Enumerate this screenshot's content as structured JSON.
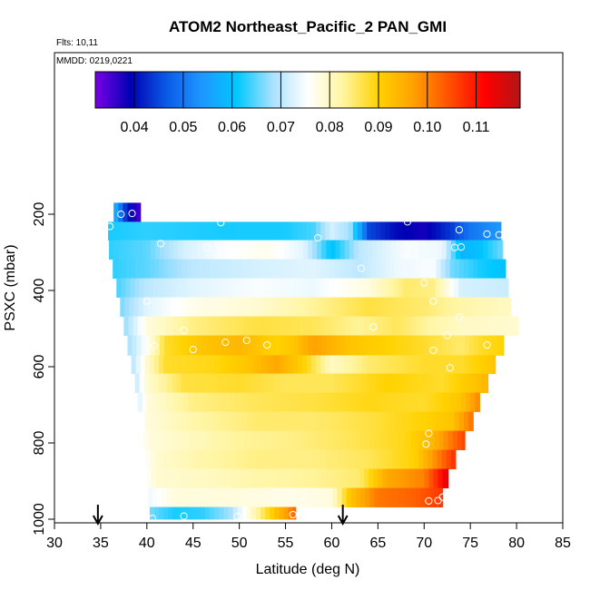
{
  "chart_data": {
    "type": "heatmap",
    "title": "ATOM2 Northeast_Pacific_2 PAN_GMI",
    "subtitle_flights": "Flts: 10,11",
    "subtitle_dates": "MMDD: 0219,0221",
    "xlabel": "Latitude (deg N)",
    "ylabel": "PSXC (mbar)",
    "xlim": [
      30,
      85
    ],
    "ylim": [
      1000,
      0
    ],
    "x_ticks": [
      "30",
      "35",
      "40",
      "45",
      "50",
      "55",
      "60",
      "65",
      "70",
      "75",
      "80",
      "85"
    ],
    "y_ticks": [
      "200",
      "400",
      "600",
      "800",
      "1000"
    ],
    "colorbar": {
      "range": [
        0.032,
        0.119
      ],
      "tick_labels": [
        "0.04",
        "0.05",
        "0.06",
        "0.07",
        "0.08",
        "0.09",
        "0.10",
        "0.11"
      ],
      "tick_values": [
        0.04,
        0.05,
        0.06,
        0.07,
        0.08,
        0.09,
        0.1,
        0.11
      ],
      "colors": [
        "#7a00e6",
        "#0000b4",
        "#0a5ae6",
        "#1e96ff",
        "#00c8ff",
        "#a8e1ff",
        "#ffffff",
        "#fff5a0",
        "#ffd200",
        "#ffa000",
        "#ff5000",
        "#ff0000",
        "#b41414"
      ]
    },
    "arrows_lat": [
      34.7,
      61.2
    ],
    "bands": [
      {
        "p_top": 170,
        "p_bot": 220,
        "lat0": 36.4,
        "lat1": 39.3,
        "nodes": [
          [
            36.4,
            0.06
          ],
          [
            37.5,
            0.045
          ],
          [
            38.5,
            0.038
          ],
          [
            39.3,
            0.035
          ]
        ]
      },
      {
        "p_top": 220,
        "p_bot": 268,
        "lat0": 35.8,
        "lat1": 78.3,
        "nodes": [
          [
            35.8,
            0.062
          ],
          [
            40,
            0.063
          ],
          [
            48,
            0.062
          ],
          [
            55,
            0.062
          ],
          [
            58,
            0.064
          ],
          [
            60,
            0.072
          ],
          [
            62,
            0.068
          ],
          [
            64,
            0.045
          ],
          [
            67,
            0.04
          ],
          [
            70,
            0.038
          ],
          [
            73,
            0.044
          ],
          [
            75,
            0.05
          ],
          [
            78.3,
            0.054
          ]
        ]
      },
      {
        "p_top": 268,
        "p_bot": 318,
        "lat0": 35.9,
        "lat1": 78.5,
        "nodes": [
          [
            35.9,
            0.063
          ],
          [
            40,
            0.065
          ],
          [
            44,
            0.072
          ],
          [
            48,
            0.075
          ],
          [
            53,
            0.077
          ],
          [
            57,
            0.073
          ],
          [
            60,
            0.06
          ],
          [
            63,
            0.07
          ],
          [
            68,
            0.075
          ],
          [
            72,
            0.074
          ],
          [
            74,
            0.058
          ],
          [
            76,
            0.06
          ],
          [
            78.5,
            0.066
          ]
        ]
      },
      {
        "p_top": 318,
        "p_bot": 368,
        "lat0": 36.3,
        "lat1": 78.8,
        "nodes": [
          [
            36.3,
            0.063
          ],
          [
            40,
            0.065
          ],
          [
            45,
            0.07
          ],
          [
            52,
            0.072
          ],
          [
            58,
            0.073
          ],
          [
            63,
            0.07
          ],
          [
            67,
            0.074
          ],
          [
            71,
            0.075
          ],
          [
            73,
            0.066
          ],
          [
            76,
            0.062
          ],
          [
            78.8,
            0.06
          ]
        ]
      },
      {
        "p_top": 368,
        "p_bot": 418,
        "lat0": 36.7,
        "lat1": 79.1,
        "nodes": [
          [
            36.7,
            0.064
          ],
          [
            40,
            0.07
          ],
          [
            45,
            0.073
          ],
          [
            52,
            0.075
          ],
          [
            58,
            0.074
          ],
          [
            64,
            0.078
          ],
          [
            68,
            0.085
          ],
          [
            71,
            0.084
          ],
          [
            74,
            0.072
          ],
          [
            79.1,
            0.071
          ]
        ]
      },
      {
        "p_top": 418,
        "p_bot": 468,
        "lat0": 37.1,
        "lat1": 79.4,
        "nodes": [
          [
            37.1,
            0.066
          ],
          [
            40,
            0.073
          ],
          [
            45,
            0.077
          ],
          [
            52,
            0.079
          ],
          [
            58,
            0.083
          ],
          [
            64,
            0.087
          ],
          [
            70,
            0.085
          ],
          [
            74,
            0.082
          ],
          [
            79.4,
            0.08
          ]
        ]
      },
      {
        "p_top": 468,
        "p_bot": 518,
        "lat0": 37.5,
        "lat1": 80.2,
        "nodes": [
          [
            37.5,
            0.067
          ],
          [
            40,
            0.078
          ],
          [
            45,
            0.084
          ],
          [
            52,
            0.087
          ],
          [
            58,
            0.086
          ],
          [
            63,
            0.083
          ],
          [
            67,
            0.086
          ],
          [
            71,
            0.082
          ],
          [
            74,
            0.08
          ],
          [
            80.2,
            0.079
          ]
        ]
      },
      {
        "p_top": 518,
        "p_bot": 570,
        "lat0": 37.9,
        "lat1": 78.6,
        "nodes": [
          [
            37.9,
            0.068
          ],
          [
            40,
            0.076
          ],
          [
            42,
            0.088
          ],
          [
            46,
            0.092
          ],
          [
            50,
            0.094
          ],
          [
            54,
            0.09
          ],
          [
            56,
            0.092
          ],
          [
            58,
            0.097
          ],
          [
            62,
            0.092
          ],
          [
            66,
            0.09
          ],
          [
            70,
            0.088
          ],
          [
            74,
            0.085
          ],
          [
            76,
            0.088
          ],
          [
            78.6,
            0.09
          ]
        ]
      },
      {
        "p_top": 570,
        "p_bot": 618,
        "lat0": 38.3,
        "lat1": 77.7,
        "nodes": [
          [
            38.3,
            0.069
          ],
          [
            40,
            0.079
          ],
          [
            42,
            0.088
          ],
          [
            47,
            0.089
          ],
          [
            51,
            0.092
          ],
          [
            54,
            0.096
          ],
          [
            57,
            0.09
          ],
          [
            60,
            0.08
          ],
          [
            64,
            0.085
          ],
          [
            70,
            0.088
          ],
          [
            74,
            0.088
          ],
          [
            77.7,
            0.092
          ]
        ]
      },
      {
        "p_top": 618,
        "p_bot": 668,
        "lat0": 38.7,
        "lat1": 76.9,
        "nodes": [
          [
            38.7,
            0.07
          ],
          [
            40,
            0.079
          ],
          [
            44,
            0.087
          ],
          [
            50,
            0.088
          ],
          [
            55,
            0.086
          ],
          [
            60,
            0.086
          ],
          [
            66,
            0.09
          ],
          [
            72,
            0.088
          ],
          [
            76.9,
            0.094
          ]
        ]
      },
      {
        "p_top": 668,
        "p_bot": 718,
        "lat0": 39.0,
        "lat1": 76.0,
        "nodes": [
          [
            39,
            0.072
          ],
          [
            40,
            0.078
          ],
          [
            45,
            0.084
          ],
          [
            52,
            0.086
          ],
          [
            58,
            0.087
          ],
          [
            64,
            0.089
          ],
          [
            70,
            0.088
          ],
          [
            74,
            0.092
          ],
          [
            76,
            0.1
          ]
        ]
      },
      {
        "p_top": 718,
        "p_bot": 768,
        "lat0": 39.3,
        "lat1": 75.3,
        "nodes": [
          [
            39.3,
            0.074
          ],
          [
            40,
            0.078
          ],
          [
            45,
            0.082
          ],
          [
            52,
            0.085
          ],
          [
            58,
            0.085
          ],
          [
            64,
            0.087
          ],
          [
            70,
            0.09
          ],
          [
            73,
            0.092
          ],
          [
            75.3,
            0.102
          ]
        ]
      },
      {
        "p_top": 768,
        "p_bot": 818,
        "lat0": 39.6,
        "lat1": 74.4,
        "nodes": [
          [
            39.6,
            0.075
          ],
          [
            40,
            0.078
          ],
          [
            44,
            0.08
          ],
          [
            50,
            0.083
          ],
          [
            56,
            0.084
          ],
          [
            62,
            0.086
          ],
          [
            68,
            0.089
          ],
          [
            71,
            0.094
          ],
          [
            74.4,
            0.106
          ]
        ]
      },
      {
        "p_top": 818,
        "p_bot": 868,
        "lat0": 39.9,
        "lat1": 73.4,
        "nodes": [
          [
            39.9,
            0.076
          ],
          [
            41,
            0.079
          ],
          [
            46,
            0.082
          ],
          [
            52,
            0.084
          ],
          [
            58,
            0.084
          ],
          [
            64,
            0.086
          ],
          [
            69,
            0.09
          ],
          [
            71,
            0.098
          ],
          [
            73.4,
            0.108
          ]
        ]
      },
      {
        "p_top": 868,
        "p_bot": 918,
        "lat0": 40.0,
        "lat1": 72.6,
        "nodes": [
          [
            40,
            0.076
          ],
          [
            41,
            0.079
          ],
          [
            46,
            0.08
          ],
          [
            52,
            0.082
          ],
          [
            58,
            0.083
          ],
          [
            63,
            0.085
          ],
          [
            66,
            0.096
          ],
          [
            70,
            0.1
          ],
          [
            72.6,
            0.115
          ]
        ]
      },
      {
        "p_top": 918,
        "p_bot": 968,
        "lat0": 40.1,
        "lat1": 72.0,
        "nodes": [
          [
            40.1,
            0.074
          ],
          [
            43,
            0.078
          ],
          [
            50,
            0.078
          ],
          [
            56,
            0.077
          ],
          [
            60,
            0.078
          ],
          [
            62,
            0.092
          ],
          [
            65,
            0.101
          ],
          [
            69,
            0.103
          ],
          [
            72,
            0.107
          ]
        ]
      },
      {
        "p_top": 968,
        "p_bot": 1000,
        "lat0": 40.3,
        "lat1": 56.1,
        "nodes": [
          [
            40.3,
            0.066
          ],
          [
            43,
            0.062
          ],
          [
            46,
            0.063
          ],
          [
            49,
            0.068
          ],
          [
            51,
            0.078
          ],
          [
            53,
            0.088
          ],
          [
            55,
            0.097
          ],
          [
            56.1,
            0.103
          ]
        ]
      }
    ],
    "observations": [
      [
        37.2,
        200
      ],
      [
        38.4,
        198
      ],
      [
        36.0,
        232
      ],
      [
        48.0,
        222
      ],
      [
        58.5,
        262
      ],
      [
        68.2,
        220
      ],
      [
        73.8,
        241
      ],
      [
        76.8,
        252
      ],
      [
        78.1,
        254
      ],
      [
        41.5,
        277
      ],
      [
        46.5,
        287
      ],
      [
        73.3,
        287
      ],
      [
        74.0,
        286
      ],
      [
        63.2,
        342
      ],
      [
        60.3,
        379
      ],
      [
        70.0,
        380
      ],
      [
        40.0,
        428
      ],
      [
        71.0,
        428
      ],
      [
        73.8,
        470
      ],
      [
        44.0,
        505
      ],
      [
        64.5,
        496
      ],
      [
        72.5,
        518
      ],
      [
        40.8,
        545
      ],
      [
        45.0,
        555
      ],
      [
        48.5,
        536
      ],
      [
        50.8,
        531
      ],
      [
        53.0,
        543
      ],
      [
        71.0,
        557
      ],
      [
        76.8,
        543
      ],
      [
        72.8,
        603
      ],
      [
        70.5,
        775
      ],
      [
        70.2,
        803
      ],
      [
        70.5,
        952
      ],
      [
        71.5,
        951
      ],
      [
        72.0,
        942
      ],
      [
        44.0,
        992
      ],
      [
        49.8,
        993
      ],
      [
        55.8,
        988
      ],
      [
        40.6,
        998
      ]
    ]
  }
}
